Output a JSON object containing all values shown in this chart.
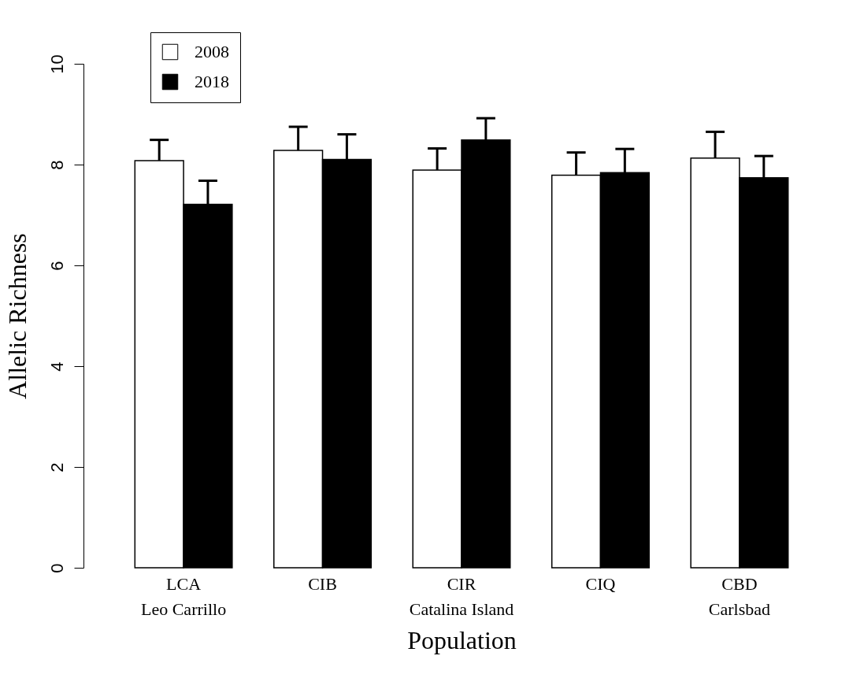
{
  "chart_data": {
    "type": "bar",
    "categories": [
      "LCA\nLeo Carrillo",
      "CIB",
      "CIR\nCatalina Island",
      "CIQ",
      "CBD\nCarlsbad"
    ],
    "series": [
      {
        "name": "2008",
        "color": "#ffffff",
        "values": [
          8.08,
          8.28,
          7.89,
          7.79,
          8.13
        ],
        "errors": [
          [
            8.08,
            8.49
          ],
          [
            8.28,
            8.75
          ],
          [
            7.89,
            8.32
          ],
          [
            7.79,
            8.24
          ],
          [
            8.13,
            8.65
          ]
        ]
      },
      {
        "name": "2018",
        "color": "#000000",
        "values": [
          7.21,
          8.1,
          8.49,
          7.84,
          7.74
        ],
        "errors": [
          [
            7.21,
            7.68
          ],
          [
            8.1,
            8.6
          ],
          [
            8.49,
            8.92
          ],
          [
            7.84,
            8.31
          ],
          [
            7.74,
            8.17
          ]
        ]
      }
    ],
    "xlabel": "Population",
    "ylabel": "Allelic Richness",
    "ylim": [
      0,
      10
    ],
    "yticks": [
      0,
      2,
      4,
      6,
      8,
      10
    ],
    "legend": "top left",
    "grid": false
  }
}
